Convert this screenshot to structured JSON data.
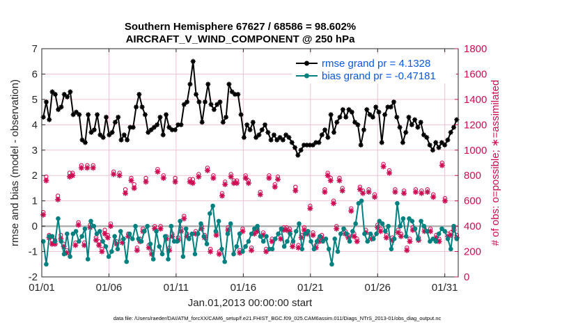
{
  "chart_data": {
    "type": "line",
    "title_line1": "Southern Hemisphere 67627 / 68586 = 98.602%",
    "title_line2": "AIRCRAFT_V_WIND_COMPONENT @ 250 hPa",
    "xlabel": "Jan.01,2013 00:00:00 start",
    "ylabel_left": "rmse and bias (model - observation)",
    "ylabel_right": "# of obs: o=possible; ∗=assimilated",
    "footer": "data file: /Users/raeder/DAI/ATM_forcXX/CAM6_setup/f.e21.FHIST_BGC.f09_025.CAM6assim.011/Diags_NTrS_2013-01/obs_diag_output.nc",
    "x_ticks": [
      "01/01",
      "01/06",
      "01/11",
      "01/16",
      "01/21",
      "01/26",
      "01/31"
    ],
    "x_tick_days": [
      1,
      6,
      11,
      16,
      21,
      26,
      31
    ],
    "xlim_days": [
      1,
      32
    ],
    "ylim_left": [
      -2,
      7
    ],
    "yticks_left": [
      "-2",
      "-1",
      "0",
      "1",
      "2",
      "3",
      "4",
      "5",
      "6",
      "7"
    ],
    "ylim_right": [
      0,
      1800
    ],
    "yticks_right": [
      "0",
      "200",
      "400",
      "600",
      "800",
      "1000",
      "1200",
      "1400",
      "1600",
      "1800"
    ],
    "zero_line": 0,
    "colors": {
      "rmse": "#000000",
      "bias": "#00807f",
      "obs": "#cc0c52",
      "legend_text": "#0a57e0",
      "zero_line": "#b0b0b0",
      "grid": "#efc3cf"
    },
    "series": [
      {
        "name": "rmse grand pr = 4.1328",
        "axis": "left",
        "values": [
          4.3,
          4.9,
          4.2,
          5.3,
          5.2,
          4.6,
          4.7,
          5.2,
          5.1,
          5.3,
          4.4,
          4.5,
          4.4,
          3.4,
          3.3,
          4.4,
          3.7,
          3.8,
          4.4,
          3.6,
          3.5,
          4.3,
          3.6,
          3.7,
          4.1,
          4.3,
          3.4,
          3.6,
          3.4,
          3.9,
          3.9,
          4.7,
          5.2,
          4.7,
          4.4,
          3.7,
          3.8,
          3.9,
          4.0,
          4.3,
          3.6,
          4.4,
          3.9,
          3.8,
          3.8,
          4.0,
          4.0,
          4.8,
          4.9,
          5.6,
          6.5,
          5.2,
          4.9,
          4.1,
          4.9,
          5.6,
          4.8,
          4.6,
          4.8,
          4.9,
          4.1,
          4.3,
          5.6,
          5.3,
          5.2,
          5.2,
          4.4,
          3.5,
          4.0,
          3.8,
          4.1,
          3.5,
          3.6,
          3.8,
          4.0,
          3.7,
          3.4,
          3.6,
          3.4,
          3.5,
          3.4,
          3.6,
          3.5,
          3.3,
          3.1,
          2.8,
          3.0,
          3.2,
          3.2,
          3.2,
          3.2,
          3.3,
          3.3,
          3.6,
          3.8,
          3.5,
          4.4,
          3.7,
          4.1,
          4.3,
          4.6,
          4.3,
          4.6,
          4.5,
          4.1,
          4.0,
          3.2,
          3.8,
          4.6,
          4.4,
          4.3,
          4.7,
          4.5,
          3.3,
          4.4,
          4.7,
          4.7,
          4.9,
          4.3,
          3.9,
          3.3,
          3.7,
          4.3,
          4.0,
          4.2,
          3.9,
          4.1,
          3.6,
          3.5,
          3.2,
          3.0,
          3.3,
          3.1,
          3.3,
          3.2,
          3.4,
          3.7,
          3.9,
          4.2
        ]
      },
      {
        "name": "bias grand pr = -0.47181",
        "axis": "left",
        "values": [
          -0.6,
          -1.5,
          -0.4,
          -0.4,
          -0.6,
          0.3,
          -0.6,
          -1.1,
          -0.3,
          -1.2,
          -0.3,
          -0.2,
          -0.6,
          -0.4,
          -0.1,
          -1.3,
          0.2,
          0.0,
          -0.3,
          -0.2,
          -0.6,
          -0.8,
          -1.2,
          -1.0,
          -0.4,
          -0.9,
          -0.2,
          -0.5,
          -1.4,
          -0.3,
          -0.5,
          0.0,
          -0.5,
          -0.6,
          -0.2,
          0.0,
          -0.7,
          -1.3,
          -0.2,
          -0.8,
          -1.1,
          -0.4,
          -1.3,
          0.0,
          -0.6,
          -0.6,
          0.2,
          -1.2,
          -0.1,
          -0.5,
          -0.3,
          -1.1,
          -0.3,
          0.1,
          -0.4,
          -0.7,
          0.5,
          0.8,
          -0.2,
          0.2,
          -0.9,
          -1.4,
          -0.3,
          0.1,
          -1.1,
          -0.8,
          -0.3,
          -1.0,
          -0.8,
          -0.6,
          -0.3,
          -0.1,
          0.0,
          -0.4,
          -0.6,
          -0.4,
          -0.9,
          -0.9,
          -0.5,
          -0.3,
          -0.1,
          -0.8,
          -0.6,
          -0.3,
          -0.6,
          -0.2,
          0.1,
          -0.9,
          -0.3,
          -0.2,
          -0.6,
          -0.9,
          -0.6,
          -0.4,
          -0.6,
          -0.5,
          -0.9,
          -1.5,
          -0.5,
          -1.0,
          -0.3,
          -0.1,
          -0.3,
          -0.6,
          -0.2,
          0.1,
          0.9,
          1.0,
          -0.3,
          -0.6,
          -0.3,
          -0.5,
          -0.3,
          0.2,
          0.1,
          -0.2,
          0.0,
          -0.9,
          -0.5,
          0.9,
          0.0,
          0.3,
          -0.4,
          0.3,
          0.2,
          -0.1,
          -0.5,
          0.2,
          0.0,
          -0.2,
          -0.6,
          -0.5,
          -0.6,
          -0.3,
          -0.1,
          -0.2,
          -0.5,
          -0.9,
          0.0,
          -0.5
        ]
      },
      {
        "name": "# of obs possible (o)",
        "axis": "right",
        "values": [
          510,
          790,
          330,
          290,
          290,
          640,
          330,
          260,
          210,
          820,
          820,
          270,
          430,
          880,
          270,
          880,
          410,
          880,
          310,
          280,
          220,
          370,
          330,
          420,
          830,
          280,
          820,
          290,
          690,
          340,
          780,
          730,
          230,
          300,
          380,
          780,
          250,
          200,
          400,
          850,
          400,
          800,
          320,
          230,
          340,
          780,
          310,
          380,
          480,
          340,
          770,
          770,
          360,
          810,
          400,
          330,
          860,
          220,
          800,
          350,
          200,
          660,
          750,
          390,
          810,
          760,
          760,
          210,
          380,
          800,
          760,
          230,
          360,
          380,
          670,
          350,
          220,
          800,
          300,
          730,
          790,
          320,
          390,
          390,
          380,
          260,
          710,
          250,
          330,
          390,
          360,
          560,
          350,
          250,
          300,
          330,
          690,
          820,
          780,
          600,
          400,
          780,
          700,
          360,
          330,
          540,
          340,
          300,
          710,
          680,
          370,
          690,
          320,
          650,
          410,
          380,
          890,
          330,
          840,
          310,
          690,
          370,
          340,
          680,
          230,
          300,
          390,
          690,
          310,
          680,
          380,
          690,
          380,
          650,
          330,
          300,
          900,
          620,
          340,
          350,
          390,
          330
        ]
      },
      {
        "name": "# of obs assimilated (∗)",
        "axis": "right",
        "values": [
          490,
          760,
          310,
          260,
          260,
          610,
          300,
          240,
          190,
          790,
          800,
          250,
          410,
          860,
          250,
          860,
          390,
          860,
          290,
          250,
          200,
          340,
          310,
          400,
          810,
          260,
          800,
          270,
          660,
          320,
          760,
          700,
          210,
          280,
          360,
          750,
          230,
          180,
          380,
          830,
          380,
          780,
          300,
          210,
          320,
          750,
          290,
          360,
          460,
          320,
          750,
          740,
          340,
          790,
          380,
          310,
          840,
          200,
          780,
          330,
          180,
          640,
          730,
          370,
          790,
          740,
          740,
          190,
          360,
          780,
          740,
          210,
          340,
          360,
          650,
          330,
          200,
          780,
          280,
          710,
          770,
          300,
          370,
          370,
          360,
          240,
          680,
          230,
          310,
          370,
          340,
          540,
          330,
          230,
          280,
          310,
          670,
          800,
          760,
          580,
          380,
          760,
          680,
          340,
          310,
          520,
          320,
          280,
          690,
          660,
          350,
          670,
          300,
          630,
          390,
          360,
          870,
          310,
          820,
          290,
          670,
          350,
          320,
          660,
          210,
          280,
          370,
          670,
          290,
          660,
          360,
          670,
          360,
          630,
          310,
          280,
          880,
          600,
          320,
          330,
          370,
          310
        ]
      }
    ]
  }
}
